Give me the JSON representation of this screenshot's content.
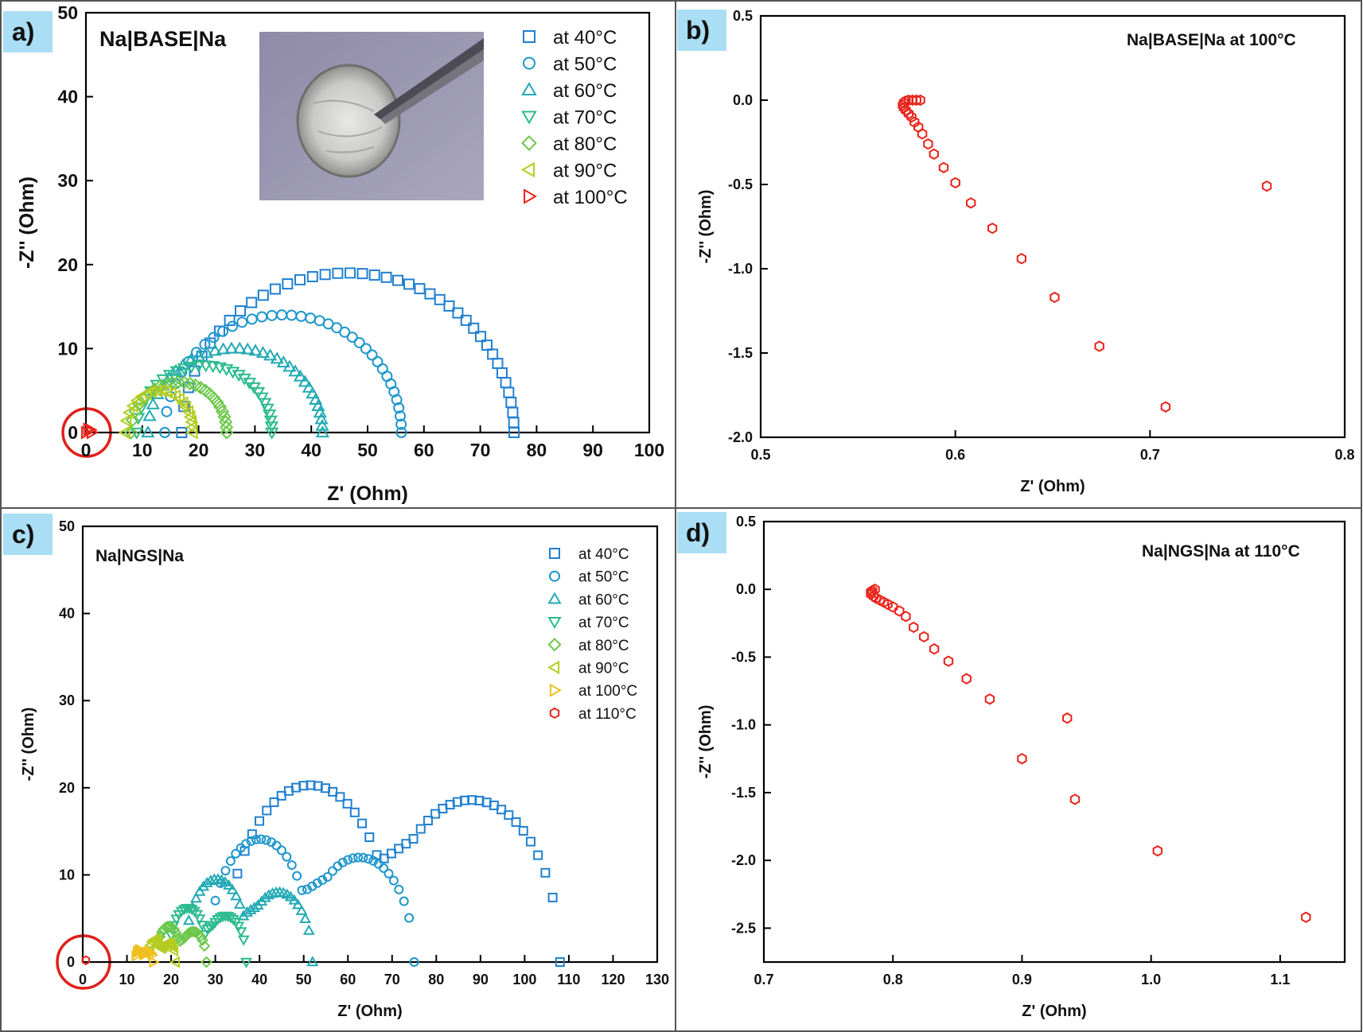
{
  "chart_data": [
    {
      "panel": "a)",
      "type": "scatter",
      "title": "Na|BASE|Na",
      "xlabel": "Z' (Ohm)",
      "ylabel": "-Z'' (Ohm)",
      "xlim": [
        0,
        100
      ],
      "ylim": [
        0,
        50
      ],
      "xticks": [
        "0",
        "10",
        "20",
        "30",
        "40",
        "50",
        "60",
        "70",
        "80",
        "90",
        "100"
      ],
      "yticks": [
        "0",
        "10",
        "20",
        "30",
        "40",
        "50"
      ],
      "legend": "top-right",
      "inset_photo": true,
      "highlight_circle": true,
      "series": [
        {
          "name": "at 40°C",
          "marker": "square",
          "color": "#2080d0",
          "x_start": 17,
          "x_end": 76,
          "peak": 19
        },
        {
          "name": "at 50°C",
          "marker": "circle",
          "color": "#1e96cc",
          "x_start": 14,
          "x_end": 56,
          "peak": 14
        },
        {
          "name": "at 60°C",
          "marker": "triangle-up",
          "color": "#22aab4",
          "x_start": 11,
          "x_end": 42,
          "peak": 10
        },
        {
          "name": "at 70°C",
          "marker": "triangle-down",
          "color": "#2cbb8e",
          "x_start": 9,
          "x_end": 33,
          "peak": 8
        },
        {
          "name": "at 80°C",
          "marker": "diamond",
          "color": "#6cc84a",
          "x_start": 8,
          "x_end": 25,
          "peak": 6
        },
        {
          "name": "at 90°C",
          "marker": "triangle-left",
          "color": "#b4cc22",
          "x_start": 7,
          "x_end": 19,
          "peak": 5
        },
        {
          "name": "at 100°C",
          "marker": "triangle-right",
          "color": "#e8241c",
          "x_start": 0,
          "x_end": 1,
          "peak": 0.4
        }
      ]
    },
    {
      "panel": "b)",
      "type": "scatter",
      "title": "Na|BASE|Na at 100°C",
      "xlabel": "Z' (Ohm)",
      "ylabel": "-Z'' (Ohm)",
      "xlim": [
        0.5,
        0.8
      ],
      "ylim": [
        -2.0,
        0.5
      ],
      "xticks": [
        "0.5",
        "0.6",
        "0.7",
        "0.8"
      ],
      "yticks": [
        "-2.0",
        "-1.5",
        "-1.0",
        "-0.5",
        "0.0",
        "0.5"
      ],
      "marker": "hexagon",
      "color": "#e8241c",
      "points": [
        [
          0.582,
          0.0
        ],
        [
          0.58,
          0.0
        ],
        [
          0.578,
          0.0
        ],
        [
          0.576,
          0.0
        ],
        [
          0.5745,
          -0.005
        ],
        [
          0.5735,
          -0.015
        ],
        [
          0.573,
          -0.03
        ],
        [
          0.5735,
          -0.045
        ],
        [
          0.5745,
          -0.06
        ],
        [
          0.576,
          -0.08
        ],
        [
          0.5775,
          -0.1
        ],
        [
          0.579,
          -0.13
        ],
        [
          0.581,
          -0.16
        ],
        [
          0.583,
          -0.2
        ],
        [
          0.586,
          -0.26
        ],
        [
          0.589,
          -0.32
        ],
        [
          0.594,
          -0.4
        ],
        [
          0.6,
          -0.49
        ],
        [
          0.608,
          -0.61
        ],
        [
          0.619,
          -0.76
        ],
        [
          0.634,
          -0.94
        ],
        [
          0.651,
          -1.17
        ],
        [
          0.674,
          -1.46
        ],
        [
          0.708,
          -1.82
        ],
        [
          0.76,
          -0.51
        ]
      ]
    },
    {
      "panel": "c)",
      "type": "scatter",
      "title": "Na|NGS|Na",
      "xlabel": "Z' (Ohm)",
      "ylabel": "-Z'' (Ohm)",
      "xlim": [
        0,
        130
      ],
      "ylim": [
        0,
        50
      ],
      "xticks": [
        "0",
        "10",
        "20",
        "30",
        "40",
        "50",
        "60",
        "70",
        "80",
        "90",
        "100",
        "110",
        "120",
        "130"
      ],
      "yticks": [
        "0",
        "10",
        "20",
        "30",
        "40",
        "50"
      ],
      "legend": "top-right",
      "highlight_circle": true,
      "series": [
        {
          "name": "at 40°C",
          "marker": "square",
          "color": "#2080d0",
          "x_start": 35,
          "x_end": 108,
          "peaks": [
            20.3,
            18.6
          ]
        },
        {
          "name": "at 50°C",
          "marker": "circle",
          "color": "#1e96cc",
          "x_start": 30,
          "x_end": 75,
          "peaks": [
            14.1,
            12.0
          ]
        },
        {
          "name": "at 60°C",
          "marker": "triangle-up",
          "color": "#22aab4",
          "x_start": 24,
          "x_end": 52,
          "peaks": [
            9.5,
            8.0
          ]
        },
        {
          "name": "at 70°C",
          "marker": "triangle-down",
          "color": "#2cbb8e",
          "x_start": 20,
          "x_end": 37,
          "peaks": [
            6.2,
            5.3
          ]
        },
        {
          "name": "at 80°C",
          "marker": "diamond",
          "color": "#6cc84a",
          "x_start": 17,
          "x_end": 28,
          "peaks": [
            4.1,
            3.5
          ]
        },
        {
          "name": "at 90°C",
          "marker": "triangle-left",
          "color": "#b4cc22",
          "x_start": 15,
          "x_end": 21,
          "peaks": [
            2.6,
            2.2
          ]
        },
        {
          "name": "at 100°C",
          "marker": "triangle-right",
          "color": "#f0c020",
          "x_start": 12,
          "x_end": 16,
          "peaks": [
            1.4,
            1.2
          ]
        },
        {
          "name": "at 110°C",
          "marker": "hexagon",
          "color": "#e8241c",
          "x_start": 0,
          "x_end": 1,
          "peaks": [
            0.2,
            0.1
          ]
        }
      ]
    },
    {
      "panel": "d)",
      "type": "scatter",
      "title": "Na|NGS|Na at 110°C",
      "xlabel": "Z' (Ohm)",
      "ylabel": "-Z'' (Ohm)",
      "xlim": [
        0.7,
        1.15
      ],
      "ylim": [
        -2.75,
        0.5
      ],
      "xticks": [
        "0.7",
        "0.8",
        "0.9",
        "1.0",
        "1.1"
      ],
      "yticks": [
        "-2.5",
        "-2.0",
        "-1.5",
        "-1.0",
        "-0.5",
        "0.0",
        "0.5"
      ],
      "marker": "hexagon",
      "color": "#e8241c",
      "points": [
        [
          0.786,
          0.0
        ],
        [
          0.784,
          -0.01
        ],
        [
          0.783,
          -0.02
        ],
        [
          0.783,
          -0.035
        ],
        [
          0.785,
          -0.05
        ],
        [
          0.787,
          -0.065
        ],
        [
          0.79,
          -0.08
        ],
        [
          0.793,
          -0.095
        ],
        [
          0.796,
          -0.11
        ],
        [
          0.8,
          -0.13
        ],
        [
          0.805,
          -0.16
        ],
        [
          0.81,
          -0.2
        ],
        [
          0.816,
          -0.28
        ],
        [
          0.824,
          -0.35
        ],
        [
          0.832,
          -0.44
        ],
        [
          0.843,
          -0.53
        ],
        [
          0.857,
          -0.66
        ],
        [
          0.875,
          -0.81
        ],
        [
          0.9,
          -1.25
        ],
        [
          0.935,
          -0.95
        ],
        [
          0.941,
          -1.55
        ],
        [
          1.005,
          -1.93
        ],
        [
          1.12,
          -2.42
        ]
      ]
    }
  ]
}
